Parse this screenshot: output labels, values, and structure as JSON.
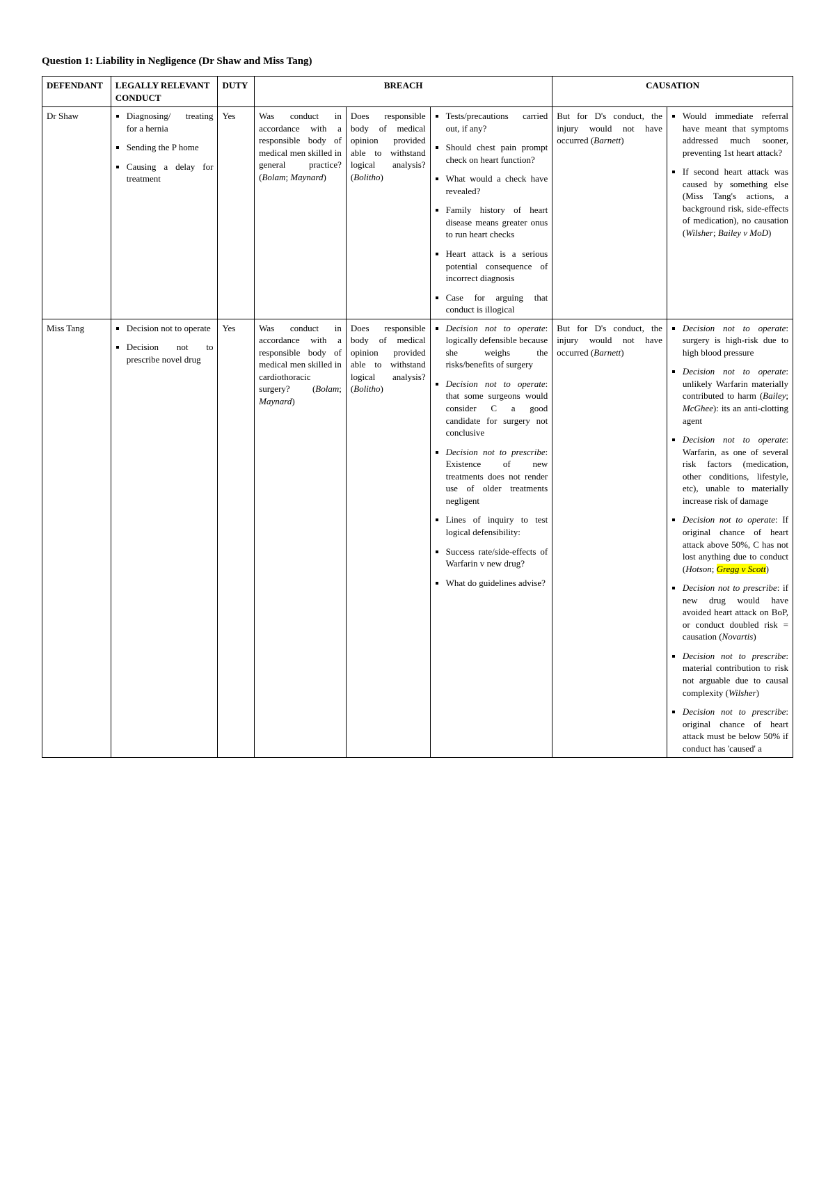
{
  "title": "Question 1: Liability in Negligence (Dr Shaw and Miss Tang)",
  "headers": {
    "defendant": "DEFENDANT",
    "conduct": "LEGALLY RELEVANT CONDUCT",
    "duty": "DUTY",
    "breach": "BREACH",
    "causation": "CAUSATION"
  },
  "rows": [
    {
      "defendant": "Dr Shaw",
      "conduct_html": "<ul class='sq'><li>Diagnosing/ treating for a hernia</li><li>Sending the P home</li><li>Causing a delay for treatment</li></ul>",
      "duty": "Yes",
      "breach1_html": "Was conduct in accordance with a responsible body of medical men skilled in general practice? (<em class='case'>Bolam</em>; <em class='case'>Maynard</em>)",
      "breach2_html": "Does responsible body of medical opinion provided able to withstand logical analysis? (<em class='case'>Bolitho</em>)",
      "breach3_html": "<ul class='sq'><li>Tests/precautions carried out, if any?</li><li>Should chest pain prompt check on heart function?</li><li>What would a check have revealed?</li><li>Family history of heart disease means greater onus to run heart checks</li><li>Heart attack is a serious potential consequence of incorrect diagnosis</li><li>Case for arguing that conduct is illogical</li></ul>",
      "caus1_html": "But for D's conduct, the injury would not have occurred (<em class='case'>Barnett</em>)",
      "caus2_html": "<ul class='sq'><li>Would immediate referral have meant that symptoms addressed much sooner, preventing 1st heart attack?</li><li>If second heart attack was caused by something else (Miss Tang's actions, a background risk, side-effects of medication), no causation (<em class='case'>Wilsher</em>; <em class='case'>Bailey v MoD</em>)</li></ul>"
    },
    {
      "defendant": "Miss Tang",
      "conduct_html": "<ul class='sq'><li>Decision not to operate</li><li>Decision not to prescribe novel drug</li></ul>",
      "duty": "Yes",
      "breach1_html": "Was conduct in accordance with a responsible body of medical men skilled in cardiothoracic surgery? (<em class='case'>Bolam</em>; <em class='case'>Maynard</em>)",
      "breach2_html": "Does responsible body of medical opinion provided able to withstand logical analysis? (<em class='case'>Bolitho</em>)",
      "breach3_html": "<ul class='sq'><li><em>Decision not to operate</em>: logically defensible because she weighs the risks/benefits of surgery</li><li><em>Decision not to operate</em>: that some surgeons would consider C a good candidate for surgery not conclusive</li><li><em>Decision not to prescribe</em>: Existence of new treatments does not render use of older treatments negligent</li><li>Lines of inquiry to test logical defensibility:</li><li>Success rate/side-effects of Warfarin v new drug?</li><li>What do guidelines advise?</li></ul>",
      "caus1_html": "But for D's conduct, the injury would not have occurred (<em class='case'>Barnett</em>)",
      "caus2_html": "<ul class='sq'><li><em>Decision not to operate</em>: surgery is high-risk due to high blood pressure</li><li><em>Decision not to operate</em>: unlikely Warfarin materially contributed to harm (<em class='case'>Bailey</em>; <em class='case'>McGhee</em>): its an anti-clotting agent</li><li><em>Decision not to operate</em>: Warfarin, as one of several risk factors (medication, other conditions, lifestyle, etc), unable to materially increase risk of damage</li><li><em>Decision not to operate</em>: If original chance of heart attack above 50%, C has not lost anything due to conduct (<em class='case'>Hotson</em>; <span class='hl'>Gregg v Scott</span>)</li><li><em>Decision not to prescribe</em>: if new drug would have avoided heart attack on BoP, or conduct doubled risk = causation (<em class='case'>Novartis</em>)</li><li><em>Decision not to prescribe</em>: material contribution to risk not arguable due to causal complexity (<em class='case'>Wilsher</em>)</li><li><em>Decision not to prescribe</em>: original chance of heart attack must be below 50% if conduct has 'caused' a</li></ul>"
    }
  ],
  "style": {
    "background": "#ffffff",
    "text_color": "#000000",
    "border_color": "#000000",
    "highlight_color": "#ffff00",
    "font_family": "Times New Roman",
    "title_fontsize": 15,
    "body_fontsize": 13
  }
}
